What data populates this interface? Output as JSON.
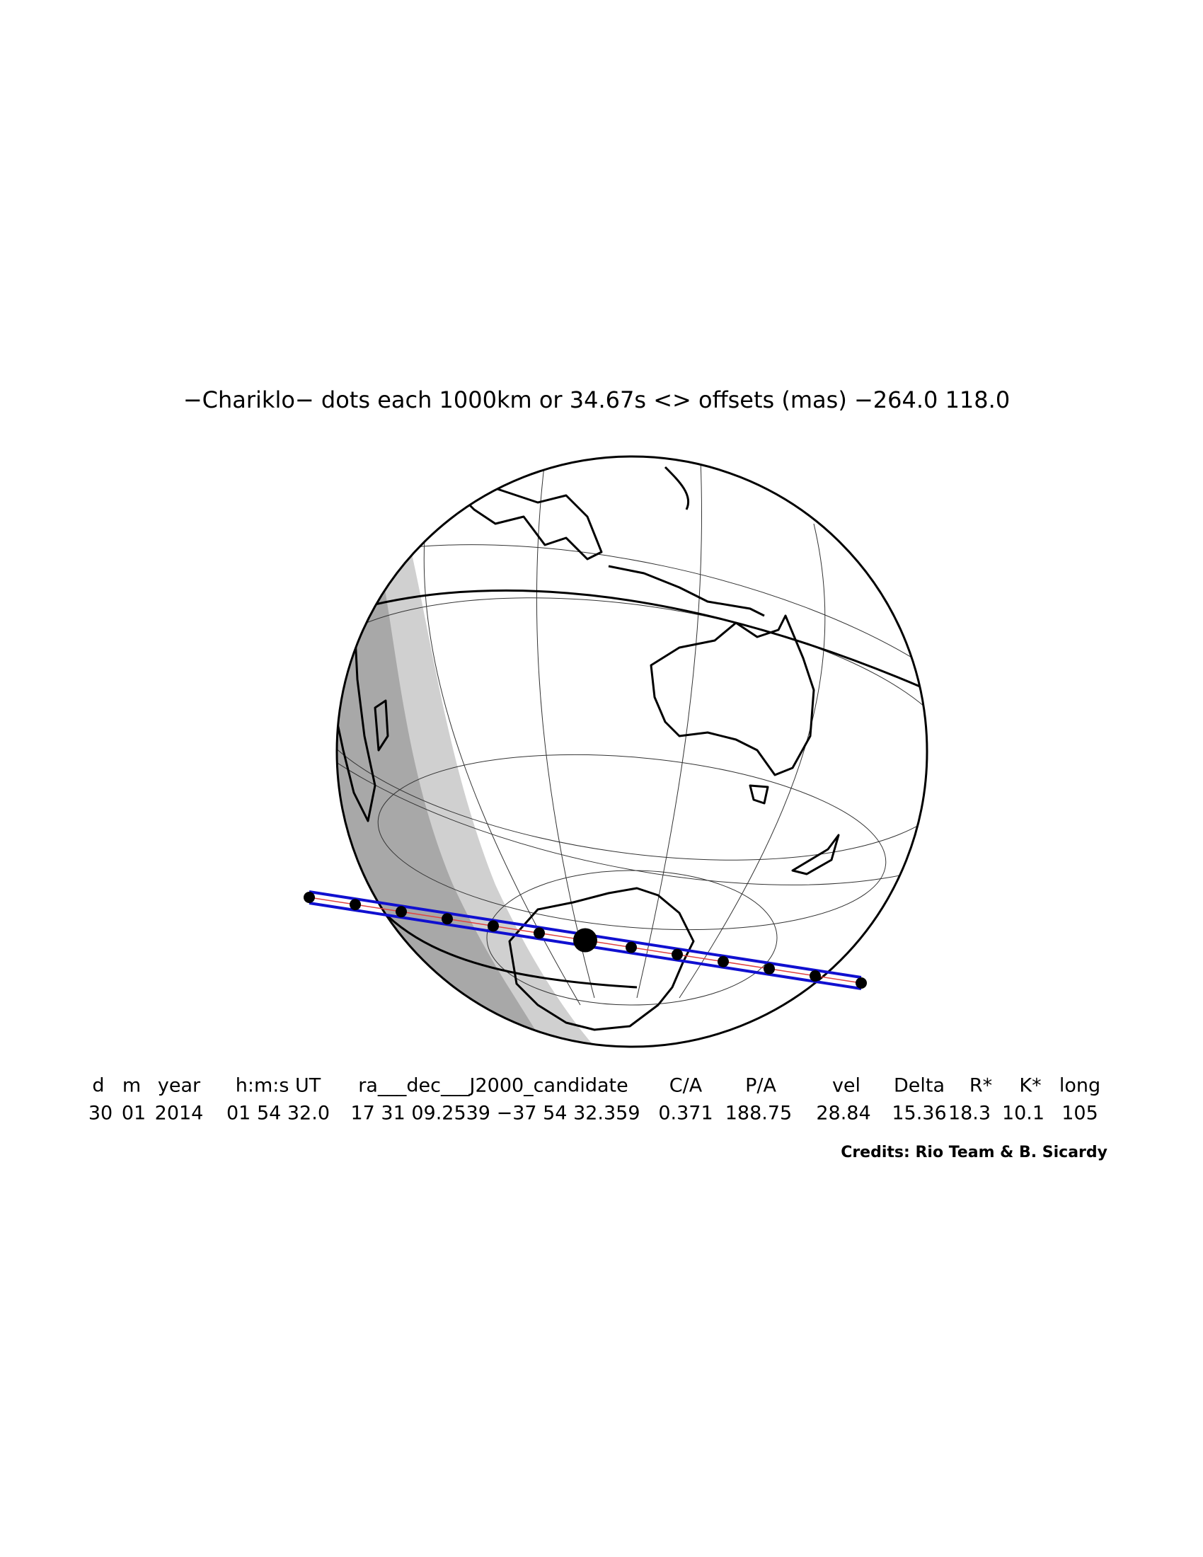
{
  "header": {
    "title": "−Chariklo− dots each 1000km or 34.67s <> offsets (mas) −264.0  118.0"
  },
  "table": {
    "columns": [
      "d",
      "m",
      "year",
      "h:m:s UT",
      "ra___dec___J2000_candidate",
      "C/A",
      "P/A",
      "vel",
      "Delta",
      "R*",
      "K*",
      "long"
    ],
    "values": [
      "30",
      "01",
      "2014",
      "01 54 32.0",
      "17 31 09.2539 −37 54 32.359",
      "0.371",
      "188.75",
      "28.84",
      "15.36",
      "18.3",
      "10.1",
      "105"
    ]
  },
  "footer": {
    "credits": "Credits: Rio Team & B. Sicardy"
  }
}
